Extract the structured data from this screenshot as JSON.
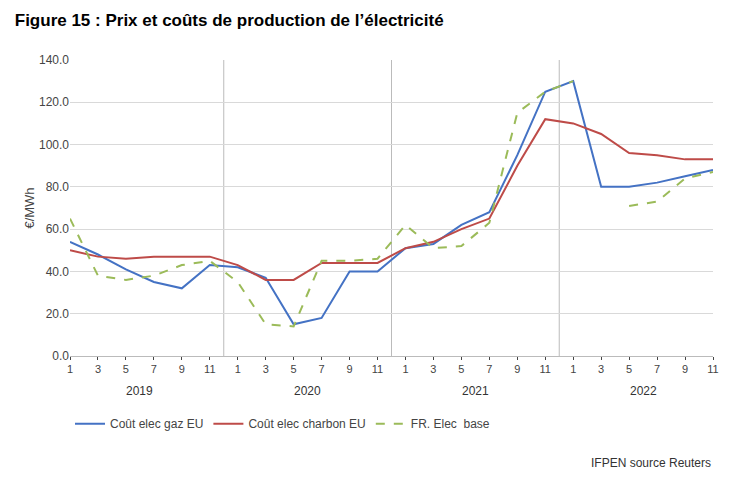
{
  "chart_data": {
    "type": "line",
    "title": "Figure 15 : Prix et coûts de production de l’électricité",
    "y_label": "€/MWh",
    "categories": [
      "1",
      "3",
      "5",
      "7",
      "9",
      "11",
      "1",
      "3",
      "5",
      "7",
      "9",
      "11",
      "1",
      "3",
      "5",
      "7",
      "9",
      "11",
      "1",
      "3",
      "5",
      "7",
      "9",
      "11"
    ],
    "series": [
      {
        "name": "Coût elec gaz EU",
        "color": "#4472c4",
        "line_style": "solid",
        "values": [
          54,
          48,
          41,
          35,
          32,
          43,
          42,
          37,
          15,
          18,
          40,
          40,
          51,
          53,
          62,
          68,
          95,
          125,
          130,
          80,
          80,
          82,
          85,
          88
        ]
      },
      {
        "name": "Coût elec charbon EU",
        "color": "#be4b48",
        "line_style": "solid",
        "values": [
          50,
          47,
          46,
          47,
          47,
          47,
          43,
          36,
          36,
          44,
          44,
          44,
          51,
          54,
          60,
          65,
          90,
          112,
          110,
          105,
          96,
          95,
          93,
          93
        ]
      },
      {
        "name": "FR. Elec  base",
        "color": "#9bbb59",
        "line_style": "dashed",
        "values": [
          65,
          38,
          36,
          38,
          43,
          45,
          35,
          15,
          14,
          45,
          45,
          46,
          62,
          51,
          52,
          63,
          115,
          125,
          130,
          null,
          71,
          73,
          84,
          87
        ]
      }
    ],
    "ylim": [
      0,
      140
    ],
    "yticks": [
      {
        "value": 0,
        "label": "0.0"
      },
      {
        "value": 20,
        "label": "20.0"
      },
      {
        "value": 40,
        "label": "40.0"
      },
      {
        "value": 60,
        "label": "60.0"
      },
      {
        "value": 80,
        "label": "80.0"
      },
      {
        "value": 100,
        "label": "100.0"
      },
      {
        "value": 120,
        "label": "120.0"
      },
      {
        "value": 140,
        "label": "140.0"
      }
    ],
    "grid": true,
    "legend": "bottom",
    "annotations": [
      "2019",
      "2020",
      "2021",
      "2022"
    ],
    "source": "IFPEN source Reuters"
  }
}
